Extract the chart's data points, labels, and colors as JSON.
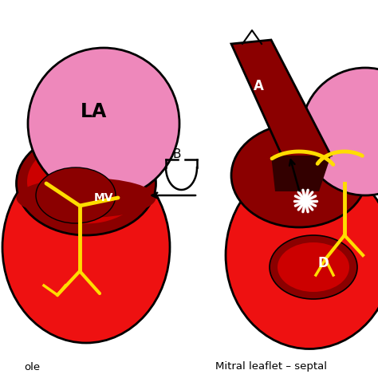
{
  "bg_color": "#ffffff",
  "dark_red": "#8B0000",
  "bright_red": "#DD0000",
  "very_bright_red": "#FF1111",
  "pink": "#EE88BB",
  "yellow": "#FFDD00",
  "black": "#000000",
  "white": "#ffffff",
  "label_LA": "LA",
  "label_MV": "MV",
  "label_A": "A",
  "label_B": "B",
  "label_D": "D",
  "caption_left": "ole",
  "caption_right": "Mitral leaflet – septal"
}
